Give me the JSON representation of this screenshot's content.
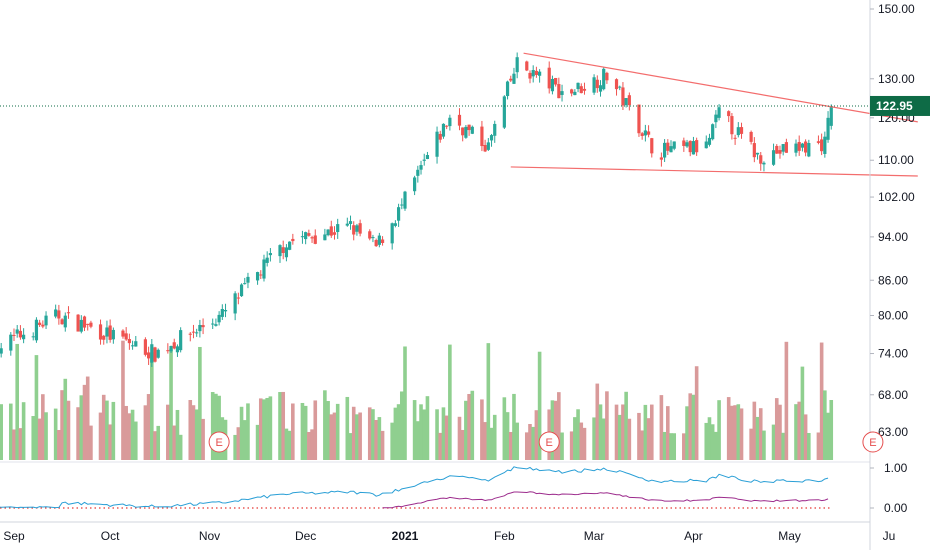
{
  "chart_data": {
    "type": "candlestick",
    "price_scale": "log",
    "y_ticks": [
      "150.00",
      "130.00",
      "120.00",
      "110.00",
      "102.00",
      "94.00",
      "86.00",
      "80.00",
      "74.00",
      "68.00",
      "63.00"
    ],
    "y_tick_values": [
      150,
      130,
      120,
      110,
      102,
      94,
      86,
      80,
      74,
      68,
      63
    ],
    "indicator_ticks": [
      "1.00",
      "0.00"
    ],
    "indicator_tick_values": [
      1.0,
      0.0
    ],
    "x_labels": [
      "Sep",
      "Oct",
      "Nov",
      "Dec",
      "2021",
      "Feb",
      "Mar",
      "Apr",
      "May",
      "Ju"
    ],
    "last_price": 122.95,
    "last_price_label": "122.95",
    "earnings_label": "E",
    "colors": {
      "up": "#26a69a",
      "down": "#ef5350",
      "up_volume": "#8fcf8f",
      "down_volume": "#d99a9a",
      "trendline": "#f36d6d",
      "indicator_blue": "#2a9fd6",
      "indicator_purple": "#9c2b8c",
      "last_price_bg": "#0e6b46"
    },
    "key_points": [
      {
        "date": "2020-08-27",
        "close": 75
      },
      {
        "date": "2020-09-15",
        "close": 80
      },
      {
        "date": "2020-10-05",
        "close": 76
      },
      {
        "date": "2020-10-15",
        "close": 74
      },
      {
        "date": "2020-11-05",
        "close": 80
      },
      {
        "date": "2020-11-25",
        "close": 93
      },
      {
        "date": "2020-12-15",
        "close": 96
      },
      {
        "date": "2020-12-23",
        "close": 92
      },
      {
        "date": "2020-12-31",
        "close": 100
      },
      {
        "date": "2021-01-15",
        "close": 120
      },
      {
        "date": "2021-01-27",
        "close": 113
      },
      {
        "date": "2021-02-05",
        "close": 134
      },
      {
        "date": "2021-02-20",
        "close": 126
      },
      {
        "date": "2021-03-05",
        "close": 131
      },
      {
        "date": "2021-03-20",
        "close": 112
      },
      {
        "date": "2021-04-05",
        "close": 113
      },
      {
        "date": "2021-04-09",
        "close": 121
      },
      {
        "date": "2021-04-21",
        "close": 111
      },
      {
        "date": "2021-05-05",
        "close": 113
      },
      {
        "date": "2021-05-12",
        "close": 114
      },
      {
        "date": "2021-05-14",
        "close": 122.95
      }
    ],
    "trendlines": [
      {
        "name": "upper",
        "from": {
          "date": "2021-02-07",
          "price": 137
        },
        "to": {
          "date": "2021-06-10",
          "price": 119
        }
      },
      {
        "name": "lower",
        "from": {
          "date": "2021-02-03",
          "price": 108.5
        },
        "to": {
          "date": "2021-06-10",
          "price": 106.5
        }
      }
    ],
    "earnings_events": [
      "2020-11-04",
      "2021-02-15",
      "2021-05-27"
    ]
  }
}
